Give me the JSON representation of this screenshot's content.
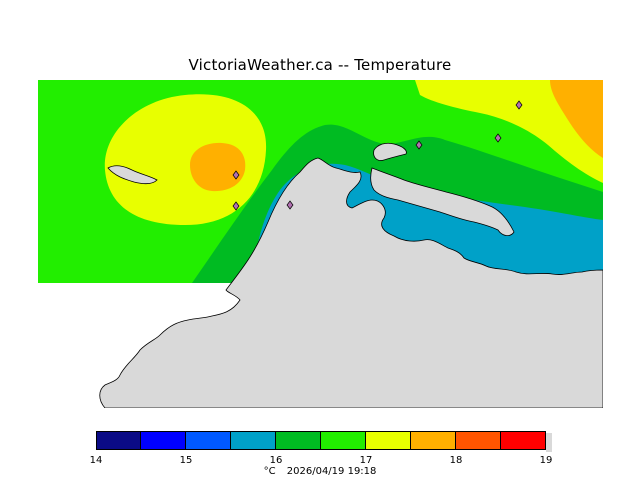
{
  "title": "VictoriaWeather.ca -- Temperature",
  "legend": {
    "colors": [
      "#0b0b86",
      "#0000ff",
      "#0059ff",
      "#00a1c8",
      "#00bb22",
      "#22ee00",
      "#e8ff00",
      "#ffb000",
      "#ff5500",
      "#ff0000"
    ],
    "ticks": [
      {
        "label": "14",
        "value": 14
      },
      {
        "label": "15",
        "value": 15
      },
      {
        "label": "16",
        "value": 16
      },
      {
        "label": "17",
        "value": 17
      },
      {
        "label": "18",
        "value": 18
      },
      {
        "label": "19",
        "value": 19
      }
    ],
    "min": 14,
    "max": 19
  },
  "units": "°C",
  "timestamp": "2026/04/19 19:18",
  "map_colors": {
    "land": "#d9d9d9",
    "green_bright": "#22ee00",
    "green_dark": "#00bb22",
    "yellow": "#e8ff00",
    "orange": "#ffb000",
    "cyan": "#00a1c8",
    "blue": "#0059ff"
  }
}
